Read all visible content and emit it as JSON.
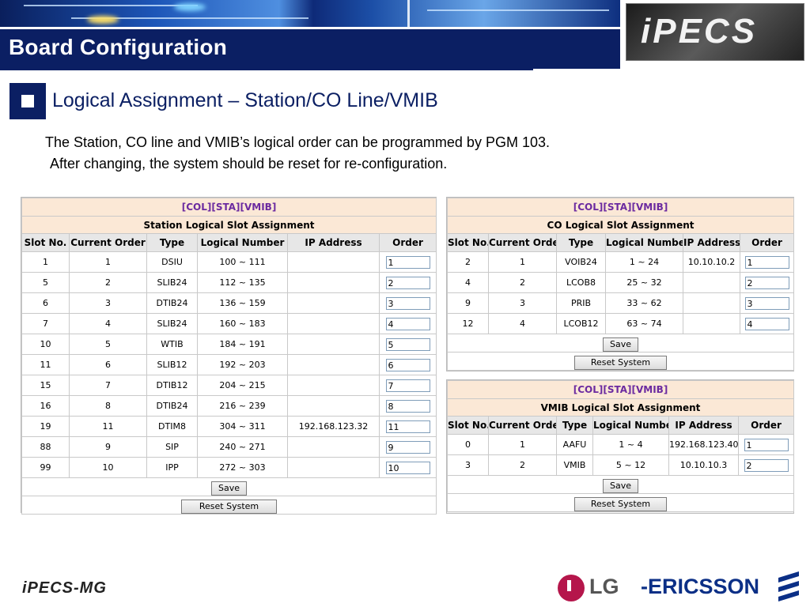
{
  "header": {
    "title": "Board Configuration",
    "logo_text": "iPECS"
  },
  "section": {
    "heading": "Logical Assignment – Station/CO Line/VMIB",
    "desc_line1": "The Station, CO line and VMIB’s logical order can be programmed by PGM 103.",
    "desc_line2": "After changing, the system should be reset for re-configuration."
  },
  "station_panel": {
    "tabs": "[COL][STA][VMIB]",
    "title": "Station Logical Slot Assignment",
    "columns": [
      "Slot No.",
      "Current Order",
      "Type",
      "Logical Number",
      "IP Address",
      "Order"
    ],
    "rows": [
      [
        "1",
        "1",
        "DSIU",
        "100 ~ 111",
        "",
        "1"
      ],
      [
        "5",
        "2",
        "SLIB24",
        "112 ~ 135",
        "",
        "2"
      ],
      [
        "6",
        "3",
        "DTIB24",
        "136 ~ 159",
        "",
        "3"
      ],
      [
        "7",
        "4",
        "SLIB24",
        "160 ~ 183",
        "",
        "4"
      ],
      [
        "10",
        "5",
        "WTIB",
        "184 ~ 191",
        "",
        "5"
      ],
      [
        "11",
        "6",
        "SLIB12",
        "192 ~ 203",
        "",
        "6"
      ],
      [
        "15",
        "7",
        "DTIB12",
        "204 ~ 215",
        "",
        "7"
      ],
      [
        "16",
        "8",
        "DTIB24",
        "216 ~ 239",
        "",
        "8"
      ],
      [
        "19",
        "11",
        "DTIM8",
        "304 ~ 311",
        "192.168.123.32",
        "11"
      ],
      [
        "88",
        "9",
        "SIP",
        "240 ~ 271",
        "",
        "9"
      ],
      [
        "99",
        "10",
        "IPP",
        "272 ~ 303",
        "",
        "10"
      ]
    ],
    "save_label": "Save",
    "reset_label": "Reset System"
  },
  "co_panel": {
    "tabs": "[COL][STA][VMIB]",
    "title": "CO Logical Slot Assignment",
    "columns": [
      "Slot No.",
      "Current Order",
      "Type",
      "Logical Number",
      "IP Address",
      "Order"
    ],
    "rows": [
      [
        "2",
        "1",
        "VOIB24",
        "1 ~ 24",
        "10.10.10.2",
        "1"
      ],
      [
        "4",
        "2",
        "LCOB8",
        "25 ~ 32",
        "",
        "2"
      ],
      [
        "9",
        "3",
        "PRIB",
        "33 ~ 62",
        "",
        "3"
      ],
      [
        "12",
        "4",
        "LCOB12",
        "63 ~ 74",
        "",
        "4"
      ]
    ],
    "save_label": "Save",
    "reset_label": "Reset System"
  },
  "vmib_panel": {
    "tabs": "[COL][STA][VMIB]",
    "title": "VMIB Logical Slot Assignment",
    "columns": [
      "Slot No.",
      "Current Order",
      "Type",
      "Logical Number",
      "IP Address",
      "Order"
    ],
    "rows": [
      [
        "0",
        "1",
        "AAFU",
        "1 ~ 4",
        "192.168.123.40",
        "1"
      ],
      [
        "3",
        "2",
        "VMIB",
        "5 ~ 12",
        "10.10.10.3",
        "2"
      ]
    ],
    "save_label": "Save",
    "reset_label": "Reset System"
  },
  "footer": {
    "left_logo": "iPECS-MG",
    "lg": "LG",
    "ericsson": "-ERICSSON"
  },
  "colors": {
    "navy": "#0b1f63",
    "header_peach": "#fbe8d6",
    "tab_purple": "#6b2aa0"
  }
}
